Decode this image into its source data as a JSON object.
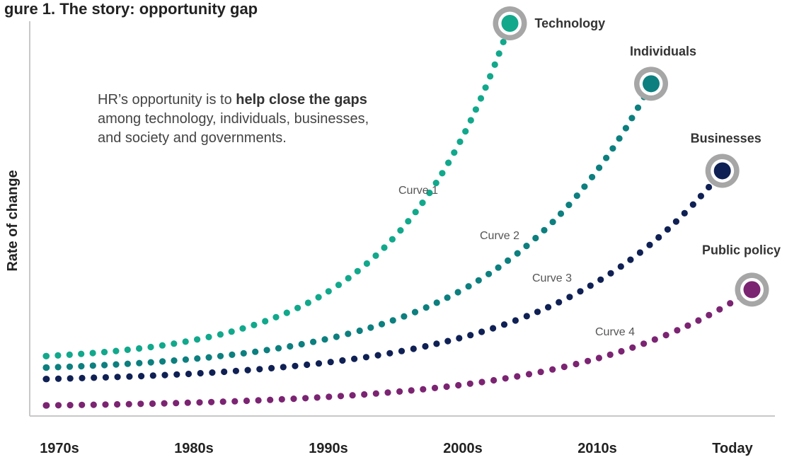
{
  "chart_data": {
    "type": "line",
    "title": "gure 1. The story: opportunity gap",
    "ylabel": "Rate of change",
    "xlabel": "",
    "categories": [
      "1970s",
      "1980s",
      "1990s",
      "2000s",
      "2010s",
      "Today"
    ],
    "x_range": [
      0,
      5
    ],
    "y_range": [
      0,
      100
    ],
    "grid": false,
    "legend": "none",
    "annotation": {
      "prefix": "HR’s opportunity is to ",
      "bold": "help close the gaps",
      "suffix": " among technology, individuals, businesses, and society and governments."
    },
    "series": [
      {
        "label": "Curve 1",
        "end_label": "Technology",
        "color": "#12a88c",
        "x_end": 3.35,
        "y_start": 12.9,
        "y_end": 100
      },
      {
        "label": "Curve 2",
        "end_label": "Individuals",
        "color": "#0d7f7f",
        "x_end": 4.4,
        "y_start": 9.9,
        "y_end": 84.2
      },
      {
        "label": "Curve 3",
        "end_label": "Businesses",
        "color": "#0f2054",
        "x_end": 4.93,
        "y_start": 6.9,
        "y_end": 61.4
      },
      {
        "label": "Public policy",
        "curve_label": "Curve 4",
        "end_label": "Public policy",
        "color": "#7b2472",
        "x_end": 5.15,
        "y_start": 0,
        "y_end": 30.3
      }
    ],
    "series_curve_labels": [
      "Curve 1",
      "Curve 2",
      "Curve 3",
      "Curve 4"
    ]
  },
  "colors": {
    "axis": "#c8c8c8",
    "ring": "#a6a6a6"
  }
}
